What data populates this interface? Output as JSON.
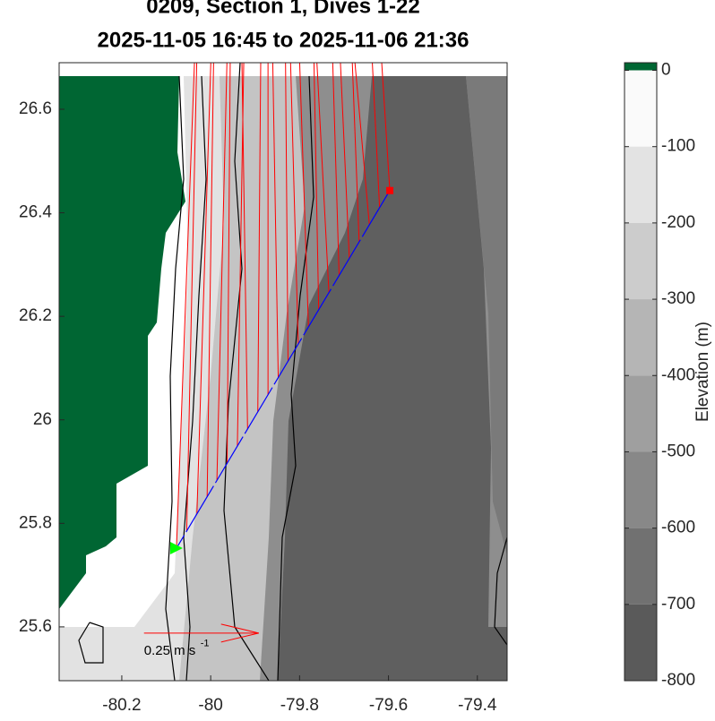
{
  "chart_data": {
    "type": "map",
    "title": "0209, Section 1, Dives 1-22",
    "subtitle": "2025-11-05 16:45 to 2025-11-06 21:36",
    "xlim": [
      -80.341,
      -79.333
    ],
    "ylim": [
      25.496,
      26.69
    ],
    "xticks": [
      -80.2,
      -80,
      -79.8,
      -79.6,
      -79.4
    ],
    "yticks": [
      25.6,
      25.8,
      26,
      26.2,
      26.4,
      26.6
    ],
    "land_color": "#006633",
    "track": {
      "color": "#0000ff",
      "lon": [
        -79.597,
        -80.077
      ],
      "lat": [
        26.443,
        25.752
      ]
    },
    "start_color": "#ff0000",
    "end_color": "#00ff00",
    "vector_color": "#ff0000",
    "vectors": {
      "lon": [
        -79.597,
        -79.62,
        -79.643,
        -79.666,
        -79.688,
        -79.711,
        -79.734,
        -79.757,
        -79.78,
        -79.803,
        -79.826,
        -79.848,
        -79.871,
        -79.894,
        -79.917,
        -79.94,
        -79.963,
        -79.986,
        -80.008,
        -80.031,
        -80.054,
        -80.077
      ],
      "lat": [
        26.443,
        26.41,
        26.377,
        26.344,
        26.311,
        26.278,
        26.246,
        26.213,
        26.18,
        26.147,
        26.114,
        26.081,
        26.048,
        26.015,
        25.982,
        25.949,
        25.917,
        25.884,
        25.851,
        25.818,
        25.785,
        25.752
      ],
      "u": [
        -0.06,
        -0.05,
        -0.08,
        -0.04,
        -0.05,
        -0.03,
        -0.06,
        -0.02,
        -0.04,
        -0.03,
        -0.01,
        -0.02,
        0.0,
        0.01,
        -0.02,
        0.02,
        0.01,
        0.03,
        0.02,
        0.04,
        0.03,
        0.05
      ],
      "v": [
        0.95,
        1.0,
        0.9,
        1.05,
        1.1,
        1.0,
        1.15,
        1.05,
        1.2,
        1.1,
        1.2,
        1.15,
        1.25,
        1.2,
        1.3,
        1.2,
        1.3,
        1.25,
        1.35,
        1.3,
        1.4,
        1.35
      ]
    },
    "scale": {
      "value": 0.25,
      "label": "0.25 m s",
      "exponent": "-1",
      "lon": -80.15,
      "lat": 25.588
    },
    "colorbar": {
      "label": "Elevation (m)",
      "lim": [
        -800,
        10
      ],
      "ticks": [
        0,
        -100,
        -200,
        -300,
        -400,
        -500,
        -600,
        -700,
        -800
      ]
    }
  }
}
